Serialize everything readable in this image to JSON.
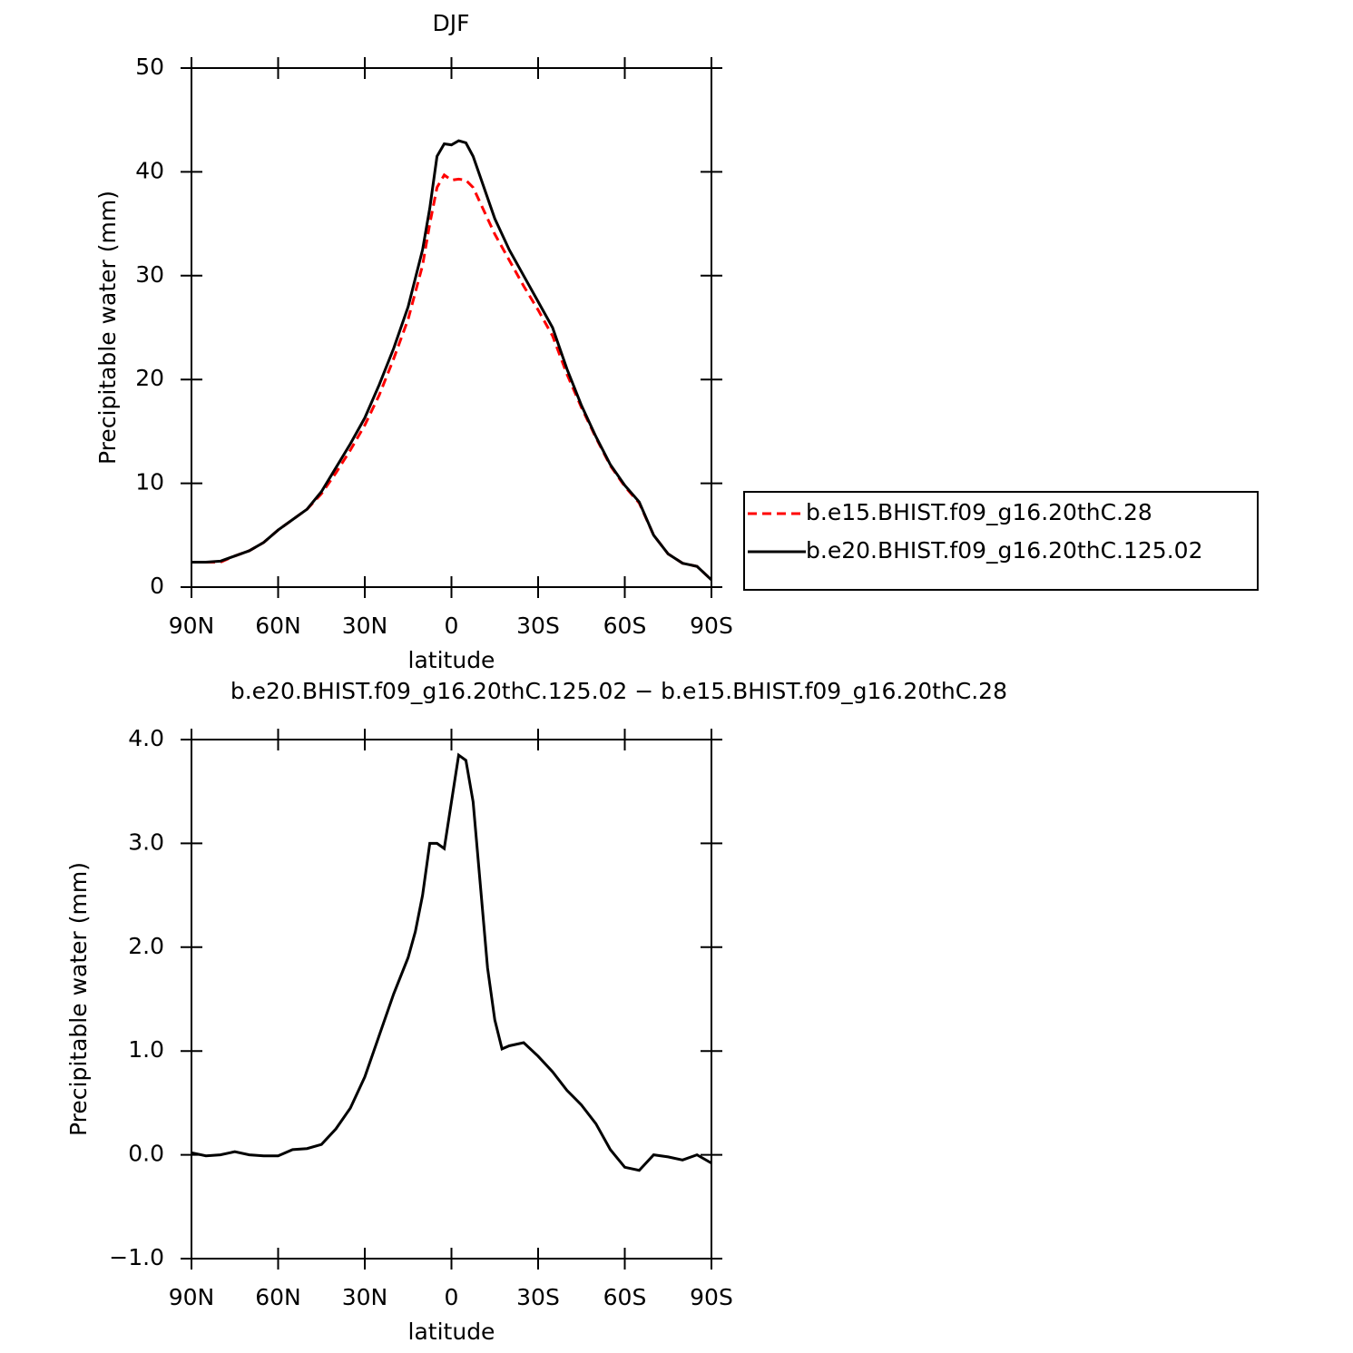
{
  "chart_data": [
    {
      "type": "line",
      "title": "DJF",
      "xlabel": "latitude",
      "ylabel": "Precipitable water (mm)",
      "x": [
        90,
        85,
        80,
        75,
        70,
        65,
        60,
        55,
        50,
        45,
        40,
        35,
        30,
        25,
        20,
        15,
        10,
        7.5,
        5,
        2.5,
        0,
        -2.5,
        -5,
        -7.5,
        -10,
        -15,
        -20,
        -25,
        -30,
        -35,
        -40,
        -45,
        -50,
        -55,
        -60,
        -65,
        -70,
        -75,
        -80,
        -85,
        -90
      ],
      "series": [
        {
          "name": "b.e15.BHIST.f09_g16.20thC.28",
          "color": "#ff0000",
          "line_style": "dashed",
          "values": [
            2.4,
            2.4,
            2.4,
            3.0,
            3.5,
            4.3,
            5.5,
            6.5,
            7.5,
            9.0,
            11.0,
            13.2,
            15.6,
            18.5,
            22.0,
            25.8,
            31.0,
            35,
            38.5,
            39.7,
            39.2,
            39.3,
            39.2,
            38.5,
            37.0,
            34.0,
            31.5,
            29.0,
            26.7,
            24.2,
            20.5,
            17.3,
            14.4,
            11.7,
            9.7,
            8.1,
            5.0,
            3.2,
            2.3,
            2.0,
            0.7
          ]
        },
        {
          "name": "b.e20.BHIST.f09_g16.20thC.125.02",
          "color": "#000000",
          "line_style": "solid",
          "values": [
            2.4,
            2.4,
            2.5,
            3.0,
            3.5,
            4.3,
            5.5,
            6.5,
            7.5,
            9.2,
            11.5,
            13.8,
            16.3,
            19.5,
            23.0,
            27.0,
            32.5,
            36.5,
            41.5,
            42.7,
            42.6,
            43.0,
            42.8,
            41.5,
            39.5,
            35.5,
            32.5,
            30.0,
            27.5,
            25.0,
            21.0,
            17.5,
            14.5,
            11.8,
            9.8,
            8.2,
            5.0,
            3.2,
            2.3,
            2.0,
            0.7
          ]
        }
      ],
      "xlim": [
        90,
        -90
      ],
      "xticks": [
        {
          "value": 90,
          "label": "90N"
        },
        {
          "value": 60,
          "label": "60N"
        },
        {
          "value": 30,
          "label": "30N"
        },
        0,
        {
          "value": -30,
          "label": "30S"
        },
        {
          "value": -60,
          "label": "60S"
        },
        {
          "value": -90,
          "label": "90S"
        }
      ],
      "ylim": [
        0,
        50
      ],
      "yticks": [
        0,
        10,
        20,
        30,
        40,
        50
      ],
      "legend": "right",
      "grid": false
    },
    {
      "type": "line",
      "title": "b.e20.BHIST.f09_g16.20thC.125.02 − b.e15.BHIST.f09_g16.20thC.28",
      "xlabel": "latitude",
      "ylabel": "Precipitable water (mm)",
      "x": [
        90,
        85,
        80,
        75,
        70,
        65,
        60,
        55,
        50,
        45,
        40,
        35,
        30,
        25,
        20,
        15,
        12.5,
        10,
        7.5,
        5,
        2.5,
        0,
        -2.5,
        -5,
        -7.5,
        -10,
        -12.5,
        -15,
        -17.5,
        -20,
        -25,
        -30,
        -35,
        -40,
        -45,
        -50,
        -55,
        -60,
        -65,
        -70,
        -75,
        -80,
        -85,
        -90
      ],
      "values": [
        0.02,
        -0.01,
        0.0,
        0.03,
        0.0,
        -0.01,
        -0.01,
        0.05,
        0.06,
        0.1,
        0.25,
        0.45,
        0.75,
        1.15,
        1.55,
        1.9,
        2.15,
        2.5,
        3.0,
        3.0,
        2.95,
        3.4,
        3.85,
        3.8,
        3.4,
        2.6,
        1.8,
        1.3,
        1.02,
        1.05,
        1.08,
        0.95,
        0.8,
        0.62,
        0.48,
        0.3,
        0.05,
        -0.12,
        -0.15,
        0.0,
        -0.02,
        -0.05,
        0.0,
        -0.08
      ],
      "color": "#000000",
      "xlim": [
        90,
        -90
      ],
      "xticks": [
        {
          "value": 90,
          "label": "90N"
        },
        {
          "value": 60,
          "label": "60N"
        },
        {
          "value": 30,
          "label": "30N"
        },
        0,
        {
          "value": -30,
          "label": "30S"
        },
        {
          "value": -60,
          "label": "60S"
        },
        {
          "value": -90,
          "label": "90S"
        }
      ],
      "ylim": [
        -1,
        4
      ],
      "yticks": [
        {
          "value": -1,
          "label": "−1.0"
        },
        {
          "value": 0,
          "label": "0.0"
        },
        {
          "value": 1,
          "label": "1.0"
        },
        {
          "value": 2,
          "label": "2.0"
        },
        {
          "value": 3,
          "label": "3.0"
        },
        {
          "value": 4,
          "label": "4.0"
        }
      ],
      "grid": false
    }
  ]
}
